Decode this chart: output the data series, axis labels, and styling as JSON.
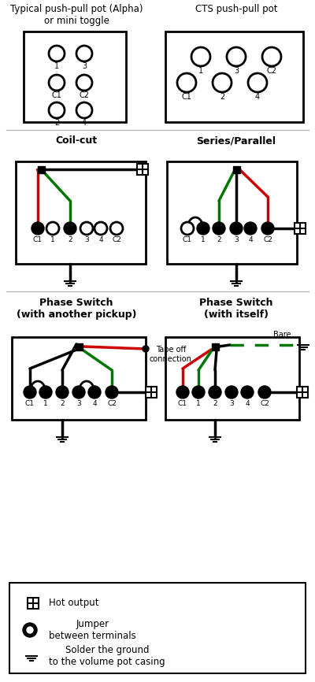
{
  "bg_color": "#ffffff",
  "black": "#000000",
  "red": "#cc0000",
  "green": "#007700",
  "gray": "#888888",
  "sections": {
    "top_left_title": "Typical push-pull pot (Alpha)\nor mini toggle",
    "top_right_title": "CTS push-pull pot",
    "mid_left_title": "Coil-cut",
    "mid_right_title": "Series/Parallel",
    "bot_left_title": "Phase Switch\n(with another pickup)",
    "bot_right_title": "Phase Switch\n(with itself)"
  },
  "legend": {
    "hot_label": "Hot output",
    "jumper_label": "Jumper\nbetween terminals",
    "ground_label": "Solder the ground\nto the volume pot casing"
  }
}
